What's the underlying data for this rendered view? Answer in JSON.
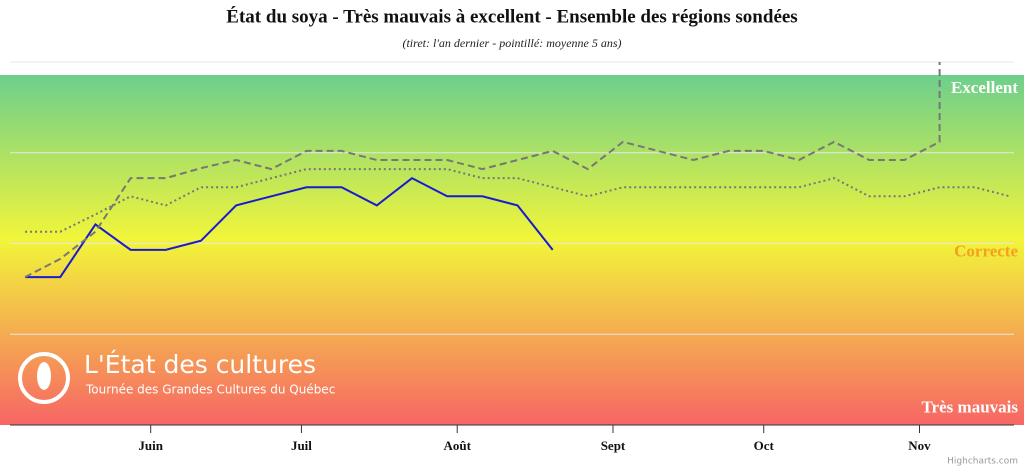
{
  "chart_data": {
    "type": "line",
    "title": "État du soya - Très mauvais à excellent - Ensemble des régions sondées",
    "subtitle": "(tiret: l'an dernier - pointillé: moyenne 5 ans)",
    "xlim": [
      124,
      325
    ],
    "xticks": [
      {
        "value": 152,
        "label": "Juin"
      },
      {
        "value": 182,
        "label": "Juil"
      },
      {
        "value": 213,
        "label": "Août"
      },
      {
        "value": 244,
        "label": "Sept"
      },
      {
        "value": 274,
        "label": "Oct"
      },
      {
        "value": 305,
        "label": "Nov"
      }
    ],
    "ylim": [
      1,
      5
    ],
    "yticks": [
      1,
      2,
      3,
      4,
      5
    ],
    "grid": true,
    "band_labels": [
      {
        "text": "Excellent",
        "y": 4.7,
        "color": "#ffffff"
      },
      {
        "text": "Correcte",
        "y": 2.9,
        "color": "#f5a020"
      },
      {
        "text": "Très mauvais",
        "y": 1.18,
        "color": "#ffffff"
      }
    ],
    "series": [
      {
        "color": "#1a1ad0",
        "dash": "solid",
        "x": [
          127,
          134,
          141,
          148,
          155,
          162,
          169,
          176,
          183,
          190,
          197,
          204,
          211,
          218,
          225,
          232
        ],
        "values": [
          2.63,
          2.63,
          3.21,
          2.93,
          2.93,
          3.03,
          3.42,
          3.52,
          3.62,
          3.62,
          3.42,
          3.72,
          3.52,
          3.52,
          3.42,
          2.93
        ]
      },
      {
        "color": "#777777",
        "dash": "dashed",
        "x": [
          127,
          134,
          141,
          148,
          155,
          162,
          169,
          176,
          183,
          190,
          197,
          204,
          211,
          218,
          225,
          232,
          239,
          246,
          253,
          260,
          267,
          274,
          281,
          288,
          295,
          302,
          309,
          309
        ],
        "values": [
          2.63,
          2.83,
          3.13,
          3.72,
          3.72,
          3.83,
          3.92,
          3.82,
          4.02,
          4.02,
          3.92,
          3.92,
          3.92,
          3.82,
          3.92,
          4.02,
          3.82,
          4.12,
          4.02,
          3.92,
          4.02,
          4.02,
          3.92,
          4.12,
          3.92,
          3.92,
          4.12,
          5.0
        ]
      },
      {
        "color": "#777777",
        "dash": "dotted",
        "x": [
          127,
          134,
          141,
          148,
          155,
          162,
          169,
          176,
          183,
          190,
          197,
          204,
          211,
          218,
          225,
          232,
          239,
          246,
          253,
          260,
          267,
          274,
          281,
          288,
          295,
          302,
          309,
          316,
          323
        ],
        "values": [
          3.13,
          3.13,
          3.32,
          3.52,
          3.42,
          3.62,
          3.62,
          3.72,
          3.82,
          3.82,
          3.82,
          3.82,
          3.82,
          3.72,
          3.72,
          3.62,
          3.52,
          3.62,
          3.62,
          3.62,
          3.62,
          3.62,
          3.62,
          3.72,
          3.52,
          3.52,
          3.62,
          3.62,
          3.52
        ]
      }
    ],
    "logo": {
      "name": "L'État des cultures",
      "tagline": "Tournée des Grandes Cultures du Québec"
    },
    "credits": "Highcharts.com"
  }
}
